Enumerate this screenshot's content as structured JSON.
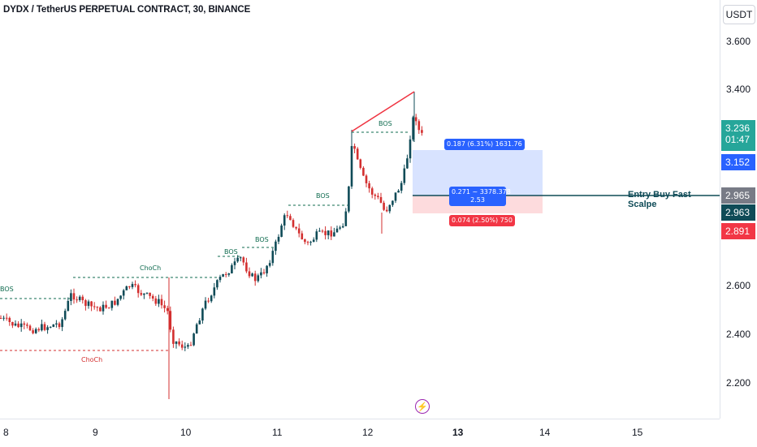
{
  "title": "DYDX / TetherUS PERPETUAL CONTRACT, 30, BINANCE",
  "unit": "USDT",
  "price_ticks": [
    "3.600",
    "3.400",
    "2.600",
    "2.400",
    "2.200"
  ],
  "time_ticks": [
    "8",
    "9",
    "10",
    "11",
    "12",
    "13",
    "14",
    "15"
  ],
  "current_price": "3.236",
  "countdown": "01:47",
  "target_price": "3.152",
  "entry_price": "2.965",
  "entry_price_2": "2.963",
  "stop_price": "2.891",
  "entry_label": "Entry Buy Fast Scalpe",
  "markers": {
    "bos_1": "BOS",
    "bos_2": "BOS",
    "bos_3": "BOS",
    "bos_4": "BOS",
    "bos_5": "BOS",
    "choch_1": "ChoCh",
    "choch_2": "ChoCh"
  },
  "position": {
    "target_info": "0.187 (6.31%) 1631.76",
    "middle_info_1": "0.271 ~ 3378.378",
    "middle_info_2": "2.53",
    "stop_info": "0.074 (2.50%) 750"
  },
  "colors": {
    "up": "#26a69a",
    "down": "#ef5350",
    "candle_up": "#0f4b57",
    "candle_down": "#d32f2f",
    "target": "#2962ff",
    "stop": "#f23645"
  },
  "chart_data": {
    "type": "candlestick",
    "symbol": "DYDX / TetherUS PERPETUAL CONTRACT",
    "interval": "30",
    "exchange": "BINANCE",
    "x_ticks": [
      "8",
      "9",
      "10",
      "11",
      "12",
      "13",
      "14",
      "15"
    ],
    "y_ticks": [
      2.2,
      2.4,
      2.6,
      3.4,
      3.6
    ],
    "ylim": [
      2.05,
      3.73
    ],
    "current_price": 3.236,
    "target": 3.152,
    "entry": 2.965,
    "stop": 2.891
  }
}
